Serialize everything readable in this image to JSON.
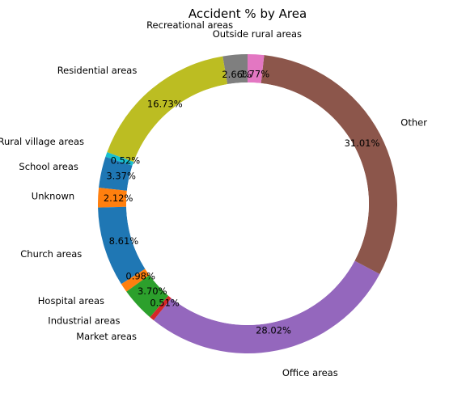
{
  "chart_data": {
    "type": "pie",
    "variant": "donut",
    "title": "Accident % by Area",
    "slices": [
      {
        "label": "Recreational areas",
        "value": 2.66,
        "pct_label": "2.66%",
        "color": "#7f7f7f"
      },
      {
        "label": "Residential areas",
        "value": 16.73,
        "pct_label": "16.73%",
        "color": "#bcbd22"
      },
      {
        "label": "Rural village areas",
        "value": 0.52,
        "pct_label": "0.52%",
        "color": "#17becf"
      },
      {
        "label": "School areas",
        "value": 3.37,
        "pct_label": "3.37%",
        "color": "#1f77b4"
      },
      {
        "label": "Unknown",
        "value": 2.12,
        "pct_label": "2.12%",
        "color": "#ff7f0e"
      },
      {
        "label": "Church areas",
        "value": 8.61,
        "pct_label": "8.61%",
        "color": "#1f77b4"
      },
      {
        "label": "Hospital areas",
        "value": 0.98,
        "pct_label": "0.98%",
        "color": "#ff7f0e"
      },
      {
        "label": "Industrial areas",
        "value": 3.7,
        "pct_label": "3.70%",
        "color": "#2ca02c"
      },
      {
        "label": "Market areas",
        "value": 0.51,
        "pct_label": "0.51%",
        "color": "#d62728"
      },
      {
        "label": "Office areas",
        "value": 28.02,
        "pct_label": "28.02%",
        "color": "#9467bd"
      },
      {
        "label": "Other",
        "value": 31.01,
        "pct_label": "31.01%",
        "color": "#8c564b"
      },
      {
        "label": "Outside rural areas",
        "value": 1.77,
        "pct_label": "1.77%",
        "color": "#e377c2"
      }
    ]
  }
}
